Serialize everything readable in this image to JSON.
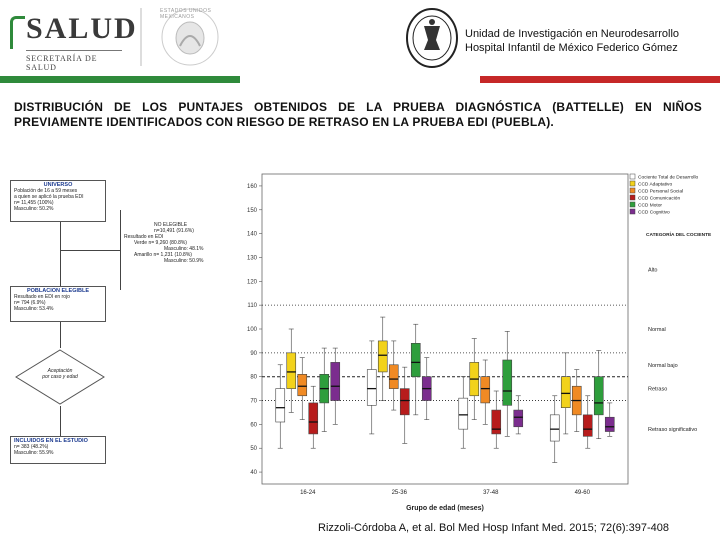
{
  "header": {
    "logo_title": "SALUD",
    "logo_subtitle": "SECRETARÍA DE SALUD",
    "seal_text": "ESTADOS UNIDOS MEXICANOS",
    "institution_line1": "Unidad de Investigación en Neurodesarrollo",
    "institution_line2": "Hospital Infantil de México Federico Gómez",
    "stripe_colors": [
      "#2f8a3b",
      "#ffffff",
      "#c62828"
    ]
  },
  "slide": {
    "title": "DISTRIBUCIÓN DE LOS PUNTAJES OBTENIDOS DE LA PRUEBA DIAGNÓSTICA (BATTELLE) EN NIÑOS PREVIAMENTE IDENTIFICADOS CON RIESGO DE RETRASO EN LA PRUEBA EDI (PUEBLA).",
    "citation": "Rizzoli-Córdoba A, et al. Bol Med Hosp Infant Med. 2015; 72(6):397-408"
  },
  "flowchart": {
    "universe": {
      "heading": "UNIVERSO",
      "lines": [
        "Población de 16 a 59 meses",
        "a quien se aplicó la prueba EDI",
        "n= 11,455 (100%)",
        "Masculino: 50.2%"
      ]
    },
    "excluded": {
      "lines": [
        "NO ELEGIBLE",
        "n=10,491 (91.6%)",
        "Resultado en EDI",
        "Verde  n= 9,260 (80.8%)",
        "Masculino: 48.1%",
        "Amarillo n= 1,231 (10.8%)",
        "Masculino: 50.9%"
      ]
    },
    "eligible": {
      "heading": "POBLACION ELEGIBLE",
      "lines": [
        "Resultado en EDI en rojo",
        "n= 794 (6.9%)",
        "Masculino: 53.4%"
      ]
    },
    "decision": {
      "lines": [
        "Aceptación",
        "por caso y edad"
      ]
    },
    "included": {
      "heading": "INCLUIDOS EN EL ESTUDIO",
      "lines": [
        "n= 383 (48.2%)",
        "Masculino: 55.9%"
      ]
    }
  },
  "chart_data": {
    "type": "box",
    "xlabel": "Grupo de edad (meses)",
    "ylabel": "",
    "ylim": [
      35,
      165
    ],
    "yticks": [
      40,
      50,
      60,
      70,
      80,
      90,
      100,
      110,
      120,
      130,
      140,
      150,
      160
    ],
    "categories": [
      "16-24",
      "25-36",
      "37-48",
      "49-60"
    ],
    "series": [
      {
        "name": "Cociente Total de Desarrollo",
        "color": "#ffffff",
        "boxes": [
          [
            50,
            61,
            67,
            75,
            85
          ],
          [
            56,
            68,
            75,
            83,
            95
          ],
          [
            50,
            58,
            64,
            71,
            80
          ],
          [
            44,
            53,
            58,
            64,
            72
          ]
        ]
      },
      {
        "name": "CCD Adaptativo",
        "color": "#f2d21b",
        "boxes": [
          [
            65,
            75,
            82,
            90,
            100
          ],
          [
            70,
            82,
            89,
            95,
            105
          ],
          [
            62,
            72,
            79,
            86,
            96
          ],
          [
            56,
            67,
            73,
            80,
            90
          ]
        ]
      },
      {
        "name": "CCD Personal Social",
        "color": "#f08a24",
        "boxes": [
          [
            62,
            72,
            76,
            81,
            88
          ],
          [
            66,
            75,
            79,
            85,
            95
          ],
          [
            60,
            69,
            75,
            80,
            87
          ],
          [
            57,
            64,
            70,
            76,
            83
          ]
        ]
      },
      {
        "name": "CCD Comunicación",
        "color": "#b71c1c",
        "boxes": [
          [
            50,
            56,
            61,
            69,
            76
          ],
          [
            52,
            64,
            70,
            75,
            84
          ],
          [
            50,
            56,
            58,
            66,
            74
          ],
          [
            50,
            55,
            58,
            64,
            72
          ]
        ]
      },
      {
        "name": "CCD Motor",
        "color": "#2e9e3c",
        "boxes": [
          [
            57,
            69,
            75,
            81,
            92
          ],
          [
            64,
            80,
            86,
            94,
            102
          ],
          [
            55,
            68,
            74,
            87,
            99
          ],
          [
            54,
            64,
            69,
            80,
            91
          ]
        ]
      },
      {
        "name": "CCD Cognitivo",
        "color": "#7b2d8e",
        "boxes": [
          [
            60,
            70,
            76,
            86,
            92
          ],
          [
            62,
            70,
            75,
            80,
            88
          ],
          [
            56,
            59,
            63,
            66,
            72
          ],
          [
            55,
            57,
            59,
            63,
            69
          ]
        ]
      }
    ],
    "reference_lines": [
      {
        "value": 110,
        "label": "Alto",
        "style": "dotted"
      },
      {
        "value": 90,
        "label": "Normal bajo",
        "style": "dotted"
      },
      {
        "value": 80,
        "label": "Retraso",
        "style": "dashed"
      },
      {
        "value": 70,
        "label": "Retraso significativo",
        "style": "dotted"
      }
    ],
    "category_labels": [
      {
        "value": 125,
        "label": "Alto"
      },
      {
        "value": 100,
        "label": "Normal"
      },
      {
        "value": 85,
        "label": "Normal bajo"
      },
      {
        "value": 75,
        "label": "Retraso"
      },
      {
        "value": 58,
        "label": "Retraso significativo"
      }
    ],
    "legend_position": "right",
    "legend_title": "CATEGORÍA DEL COCIENTE"
  }
}
